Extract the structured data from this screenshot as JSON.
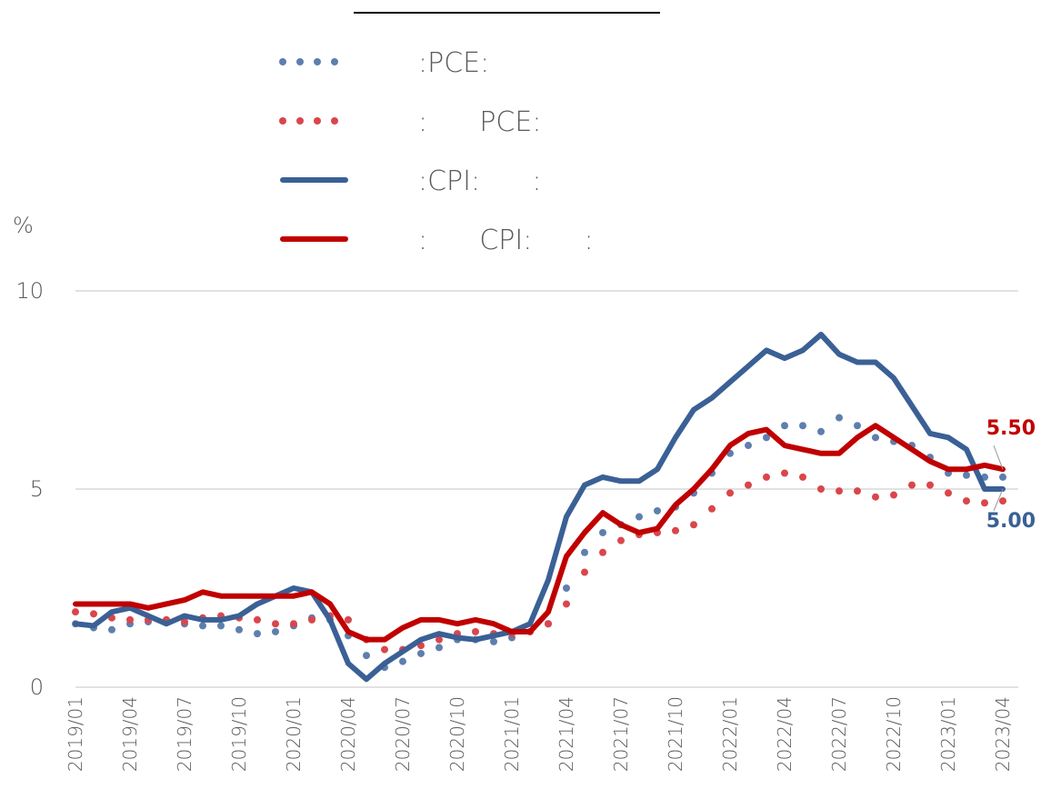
{
  "chart_data": {
    "type": "line",
    "ylabel": "%",
    "categories": [
      "2019/01",
      null,
      null,
      "2019/04",
      null,
      null,
      "2019/07",
      null,
      null,
      "2019/10",
      null,
      null,
      "2020/01",
      null,
      null,
      "2020/04",
      null,
      null,
      "2020/07",
      null,
      null,
      "2020/10",
      null,
      null,
      "2021/01",
      null,
      null,
      "2021/04",
      null,
      null,
      "2021/07",
      null,
      null,
      "2021/10",
      null,
      null,
      "2022/01",
      null,
      null,
      "2022/04",
      null,
      null,
      "2022/07",
      null,
      null,
      "2022/10",
      null,
      null,
      "2023/01",
      null,
      null,
      "2023/04"
    ],
    "ylim": [
      0,
      10
    ],
    "yticks": [
      0,
      5,
      10
    ],
    "grid": true,
    "series": [
      {
        "name": ":PCE:",
        "color": "#5e7fad",
        "style": "dotted",
        "values": [
          1.6,
          1.5,
          1.45,
          1.6,
          1.65,
          1.65,
          1.6,
          1.55,
          1.55,
          1.45,
          1.35,
          1.4,
          1.55,
          1.75,
          1.7,
          1.3,
          0.8,
          0.5,
          0.65,
          0.85,
          1.0,
          1.2,
          1.2,
          1.15,
          1.25,
          1.4,
          1.6,
          2.5,
          3.4,
          3.9,
          4.1,
          4.3,
          4.45,
          4.55,
          4.9,
          5.4,
          5.9,
          6.1,
          6.3,
          6.6,
          6.6,
          6.45,
          6.8,
          6.6,
          6.3,
          6.2,
          6.1,
          5.8,
          5.4,
          5.35,
          5.3,
          5.3
        ]
      },
      {
        "name": ":      PCE:",
        "color": "#d9464b",
        "style": "dotted",
        "values": [
          1.9,
          1.85,
          1.75,
          1.7,
          1.7,
          1.7,
          1.65,
          1.75,
          1.8,
          1.75,
          1.7,
          1.6,
          1.6,
          1.7,
          1.8,
          1.7,
          1.2,
          0.95,
          0.95,
          1.05,
          1.2,
          1.35,
          1.4,
          1.35,
          1.35,
          1.4,
          1.6,
          2.1,
          2.9,
          3.4,
          3.7,
          3.85,
          3.9,
          3.95,
          4.1,
          4.5,
          4.9,
          5.1,
          5.3,
          5.4,
          5.3,
          5.0,
          4.95,
          4.95,
          4.8,
          4.85,
          5.1,
          5.1,
          4.9,
          4.7,
          4.65,
          4.7
        ]
      },
      {
        "name": ":CPI:      :",
        "color": "#3a6095",
        "style": "solid",
        "values": [
          1.6,
          1.55,
          1.9,
          2.0,
          1.8,
          1.6,
          1.8,
          1.7,
          1.7,
          1.8,
          2.1,
          2.3,
          2.5,
          2.4,
          1.7,
          0.6,
          0.2,
          0.6,
          0.9,
          1.2,
          1.35,
          1.25,
          1.2,
          1.3,
          1.4,
          1.6,
          2.7,
          4.3,
          5.1,
          5.3,
          5.2,
          5.2,
          5.5,
          6.3,
          7.0,
          7.3,
          7.7,
          8.1,
          8.5,
          8.3,
          8.5,
          8.9,
          8.4,
          8.2,
          8.2,
          7.8,
          7.1,
          6.4,
          6.3,
          6.0,
          5.0,
          5.0
        ],
        "value_labels": [
          null,
          null,
          null,
          null,
          null,
          null,
          null,
          null,
          null,
          null,
          null,
          null,
          null,
          null,
          null,
          null,
          null,
          null,
          null,
          null,
          null,
          null,
          null,
          null,
          null,
          null,
          null,
          null,
          null,
          null,
          null,
          null,
          null,
          null,
          null,
          null,
          null,
          null,
          null,
          null,
          null,
          null,
          null,
          null,
          null,
          null,
          null,
          null,
          null,
          null,
          null,
          "5.00"
        ]
      },
      {
        "name": ":      CPI:      :",
        "color": "#c00000",
        "style": "solid",
        "values": [
          2.1,
          2.1,
          2.1,
          2.1,
          2.0,
          2.1,
          2.2,
          2.4,
          2.3,
          2.3,
          2.3,
          2.3,
          2.3,
          2.4,
          2.1,
          1.4,
          1.2,
          1.2,
          1.5,
          1.7,
          1.7,
          1.6,
          1.7,
          1.6,
          1.4,
          1.4,
          1.9,
          3.3,
          3.9,
          4.4,
          4.1,
          3.9,
          4.0,
          4.6,
          5.0,
          5.5,
          6.1,
          6.4,
          6.5,
          6.1,
          6.0,
          5.9,
          5.9,
          6.3,
          6.6,
          6.3,
          6.0,
          5.7,
          5.5,
          5.5,
          5.6,
          5.5
        ],
        "value_labels": [
          null,
          null,
          null,
          null,
          null,
          null,
          null,
          null,
          null,
          null,
          null,
          null,
          null,
          null,
          null,
          null,
          null,
          null,
          null,
          null,
          null,
          null,
          null,
          null,
          null,
          null,
          null,
          null,
          null,
          null,
          null,
          null,
          null,
          null,
          null,
          null,
          null,
          null,
          null,
          null,
          null,
          null,
          null,
          null,
          null,
          null,
          null,
          null,
          null,
          null,
          null,
          "5.50"
        ]
      }
    ]
  }
}
